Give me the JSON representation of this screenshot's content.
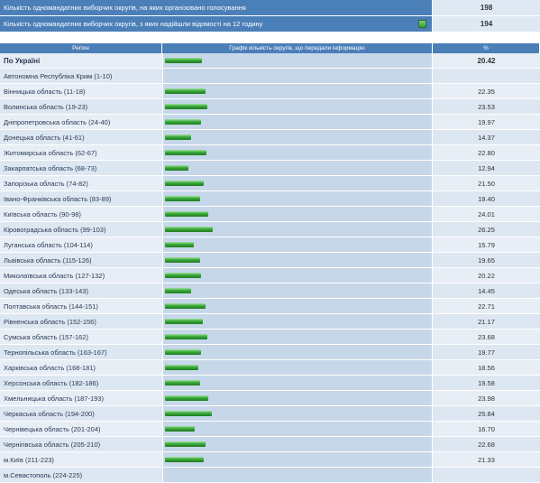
{
  "summary": [
    {
      "label": "Кількість одномандатних виборчих округів, на яких організовано голосування",
      "value": "198",
      "icon": false
    },
    {
      "label": "Кількість одномандатних виборчих округів, з яких надійшли відомості на 12 годину",
      "value": "194",
      "icon": true
    }
  ],
  "header": {
    "region": "Регіон",
    "chart": "Графік кількість округів, що передали інформацію",
    "percent": "%"
  },
  "rows": [
    {
      "name": "По Україні",
      "value": "20.42",
      "pct": 20.42,
      "bold": true
    },
    {
      "name": "Автономна Республіка Крим (1-10)",
      "value": "",
      "pct": 0
    },
    {
      "name": "Вінницька область (11-18)",
      "value": "22.35",
      "pct": 22.35
    },
    {
      "name": "Волинська область (19-23)",
      "value": "23.53",
      "pct": 23.53
    },
    {
      "name": "Дніпропетровська область (24-40)",
      "value": "19.97",
      "pct": 19.97
    },
    {
      "name": "Донецька область (41-61)",
      "value": "14.37",
      "pct": 14.37
    },
    {
      "name": "Житомирська область (62-67)",
      "value": "22.80",
      "pct": 22.8
    },
    {
      "name": "Закарпатська область (68-73)",
      "value": "12.94",
      "pct": 12.94
    },
    {
      "name": "Запорізька область (74-82)",
      "value": "21.50",
      "pct": 21.5
    },
    {
      "name": "Івано-Франківська область (83-89)",
      "value": "19.40",
      "pct": 19.4
    },
    {
      "name": "Київська область (90-98)",
      "value": "24.01",
      "pct": 24.01
    },
    {
      "name": "Кіровоградська область (99-103)",
      "value": "26.25",
      "pct": 26.25
    },
    {
      "name": "Луганська область (104-114)",
      "value": "15.79",
      "pct": 15.79
    },
    {
      "name": "Львівська область (115-126)",
      "value": "19.65",
      "pct": 19.65
    },
    {
      "name": "Миколаївська область (127-132)",
      "value": "20.22",
      "pct": 20.22
    },
    {
      "name": "Одеська область (133-143)",
      "value": "14.45",
      "pct": 14.45
    },
    {
      "name": "Полтавська область (144-151)",
      "value": "22.71",
      "pct": 22.71
    },
    {
      "name": "Рівненська область (152-156)",
      "value": "21.17",
      "pct": 21.17
    },
    {
      "name": "Сумська область (157-162)",
      "value": "23.68",
      "pct": 23.68
    },
    {
      "name": "Тернопільська область (163-167)",
      "value": "19.77",
      "pct": 19.77
    },
    {
      "name": "Харківська область (168-181)",
      "value": "18.56",
      "pct": 18.56
    },
    {
      "name": "Херсонська область (182-186)",
      "value": "19.58",
      "pct": 19.58
    },
    {
      "name": "Хмельницька область (187-193)",
      "value": "23.98",
      "pct": 23.98
    },
    {
      "name": "Черкаська область (194-200)",
      "value": "25.84",
      "pct": 25.84
    },
    {
      "name": "Чернівецька область (201-204)",
      "value": "16.70",
      "pct": 16.7
    },
    {
      "name": "Чернігівська область (205-210)",
      "value": "22.68",
      "pct": 22.68
    },
    {
      "name": "м.Київ (211-223)",
      "value": "21.33",
      "pct": 21.33
    },
    {
      "name": "м.Севастополь (224-225)",
      "value": "",
      "pct": 0
    }
  ],
  "colors": {
    "header_bg": "#4b7fb8",
    "bar_green": "#3aa83a",
    "chart_bg": "#c7d7ea"
  }
}
